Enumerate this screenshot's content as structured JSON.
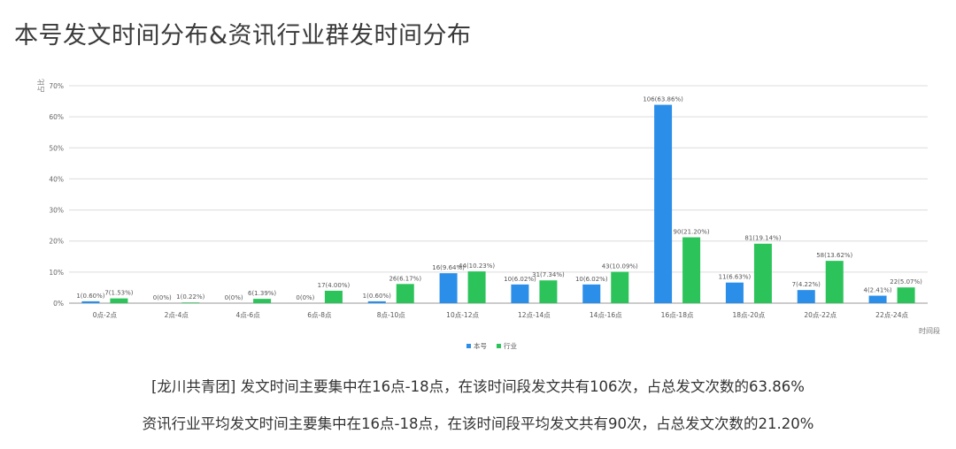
{
  "title": "本号发文时间分布&资讯行业群发时间分布",
  "summary": {
    "line1": "[龙川共青团] 发文时间主要集中在16点-18点，在该时间段发文共有106次，占总发文次数的63.86%",
    "line2": "资讯行业平均发文时间主要集中在16点-18点，在该时间段平均发文共有90次，占总发文次数的21.20%"
  },
  "chart_data": {
    "type": "bar",
    "ylabel": "占比",
    "xlabel": "时间段",
    "ylim": [
      0,
      70
    ],
    "yticks": [
      "0%",
      "10%",
      "20%",
      "30%",
      "40%",
      "50%",
      "60%",
      "70%"
    ],
    "categories": [
      "0点-2点",
      "2点-4点",
      "4点-6点",
      "6点-8点",
      "8点-10点",
      "10点-12点",
      "12点-14点",
      "14点-16点",
      "16点-18点",
      "18点-20点",
      "20点-22点",
      "22点-24点"
    ],
    "legend_position": "bottom-center",
    "grid": true,
    "series": [
      {
        "name": "本号",
        "color": "#2b8ee8",
        "values": [
          0.6,
          0,
          0,
          0,
          0.6,
          9.64,
          6.02,
          6.02,
          63.86,
          6.63,
          4.22,
          2.41
        ],
        "labels": [
          "1(0.60%)",
          "0(0%)",
          "0(0%)",
          "0(0%)",
          "1(0.60%)",
          "16(9.64%)",
          "10(6.02%)",
          "10(6.02%)",
          "106(63.86%)",
          "11(6.63%)",
          "7(4.22%)",
          "4(2.41%)"
        ]
      },
      {
        "name": "行业",
        "color": "#2cc45a",
        "values": [
          1.53,
          0.22,
          1.39,
          4.0,
          6.17,
          10.23,
          7.34,
          10.09,
          21.2,
          19.14,
          13.62,
          5.07
        ],
        "labels": [
          "7(1.53%)",
          "1(0.22%)",
          "6(1.39%)",
          "17(4.00%)",
          "26(6.17%)",
          "44(10.23%)",
          "31(7.34%)",
          "43(10.09%)",
          "90(21.20%)",
          "81(19.14%)",
          "58(13.62%)",
          "22(5.07%)"
        ]
      }
    ]
  }
}
